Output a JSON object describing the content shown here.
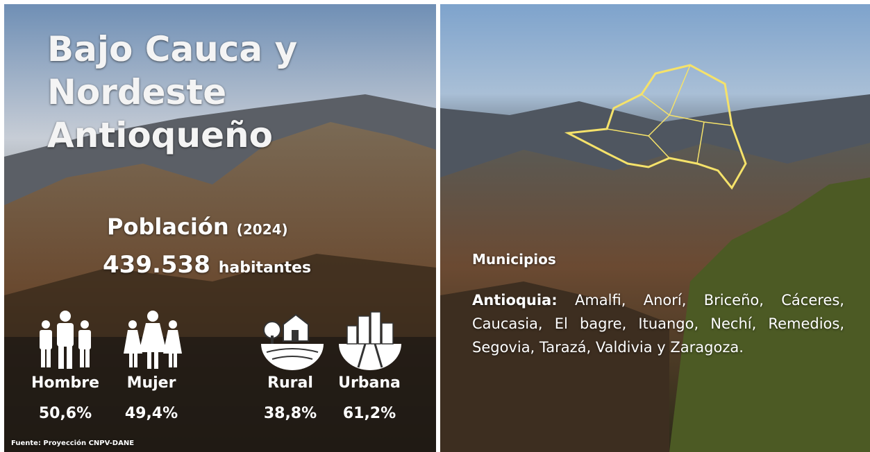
{
  "title_lines": [
    "Bajo Cauca y",
    "Nordeste",
    "Antioqueño"
  ],
  "population": {
    "label": "Población",
    "year": "(2024)",
    "value": "439.538",
    "unit": "habitantes"
  },
  "stats": [
    {
      "label": "Hombre",
      "value": "50,6%"
    },
    {
      "label": "Mujer",
      "value": "49,4%"
    },
    {
      "label": "Rural",
      "value": "38,8%"
    },
    {
      "label": "Urbana",
      "value": "61,2%"
    }
  ],
  "source": "Fuente: Proyección CNPV-DANE",
  "municipios": {
    "heading": "Municipios",
    "prefix": "Antioquia:",
    "list": "Amalfi, Anorí, Briceño, Cáceres, Caucasia, El bagre, Ituango, Nechí, Remedios, Segovia, Tarazá, Valdivia y Zaragoza."
  }
}
